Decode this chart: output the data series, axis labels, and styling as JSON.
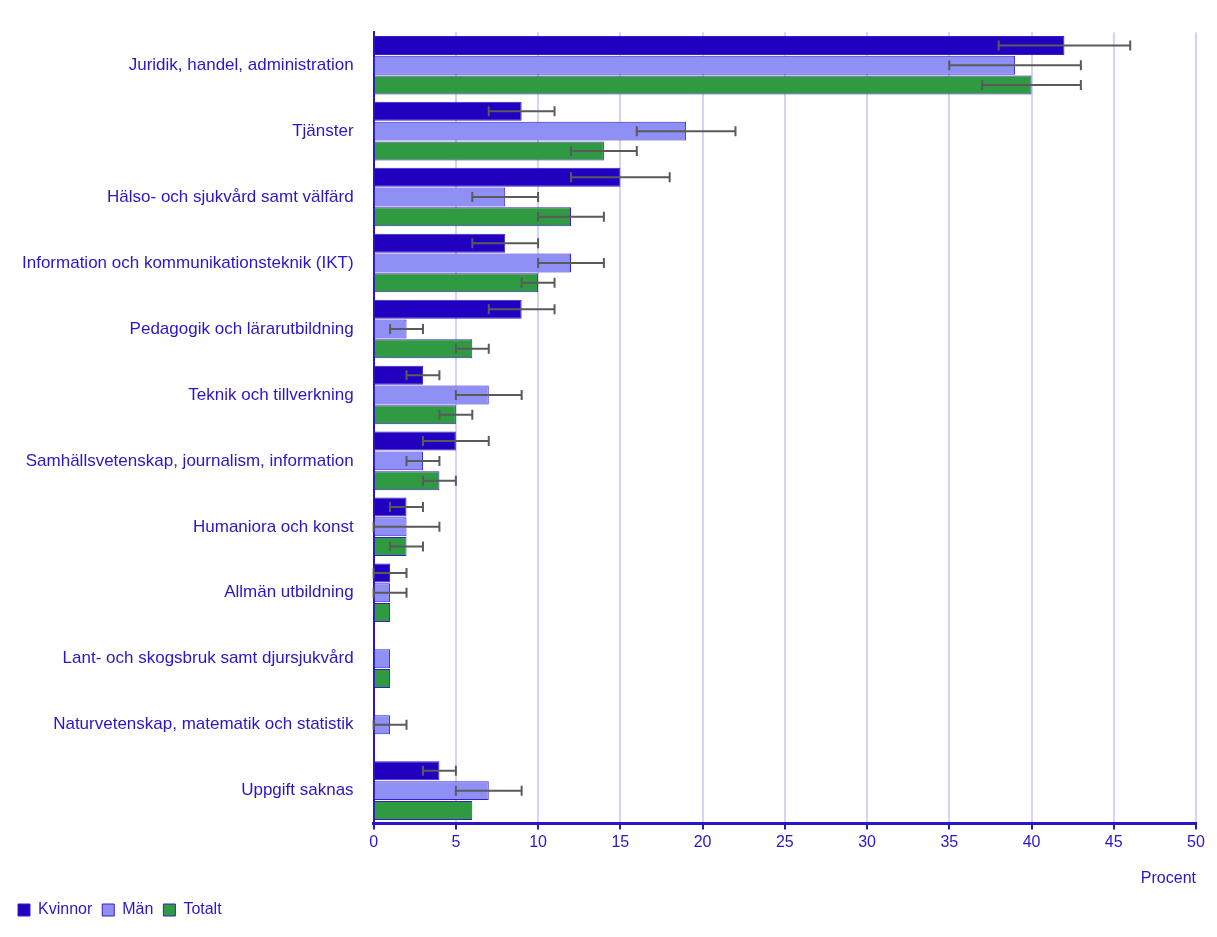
{
  "chart_data": {
    "type": "bar",
    "orientation": "horizontal",
    "xlabel": "Procent",
    "categories": [
      "Juridik, handel, administration",
      "Tjänster",
      "Hälso- och sjukvård samt välfärd",
      "Information och kommunikationsteknik (IKT)",
      "Pedagogik och lärarutbildning",
      "Teknik och tillverkning",
      "Samhällsvetenskap, journalism, information",
      "Humaniora och konst",
      "Allmän utbildning",
      "Lant- och skogsbruk samt djursjukvård",
      "Naturvetenskap, matematik och statistik",
      "Uppgift saknas"
    ],
    "series": [
      {
        "name": "Kvinnor",
        "color": "#2200c0",
        "values": [
          42,
          9,
          15,
          8,
          9,
          3,
          5,
          2,
          1,
          null,
          null,
          4
        ],
        "errors": [
          [
            38,
            46
          ],
          [
            7,
            11
          ],
          [
            12,
            18
          ],
          [
            6,
            10
          ],
          [
            7,
            11
          ],
          [
            2,
            4
          ],
          [
            3,
            7
          ],
          [
            1,
            3
          ],
          [
            0,
            2
          ],
          null,
          null,
          [
            3,
            5
          ]
        ]
      },
      {
        "name": "Män",
        "color": "#8f90f5",
        "values": [
          39,
          19,
          8,
          12,
          2,
          7,
          3,
          2,
          1,
          1,
          1,
          7
        ],
        "errors": [
          [
            35,
            43
          ],
          [
            16,
            22
          ],
          [
            6,
            10
          ],
          [
            10,
            14
          ],
          [
            1,
            3
          ],
          [
            5,
            9
          ],
          [
            2,
            4
          ],
          [
            0,
            4
          ],
          [
            0,
            2
          ],
          null,
          [
            0,
            2
          ],
          [
            5,
            9
          ]
        ]
      },
      {
        "name": "Totalt",
        "color": "#2f9a42",
        "values": [
          40,
          14,
          12,
          10,
          6,
          5,
          4,
          2,
          1,
          1,
          null,
          6
        ],
        "errors": [
          [
            37,
            43
          ],
          [
            12,
            16
          ],
          [
            10,
            14
          ],
          [
            9,
            11
          ],
          [
            5,
            7
          ],
          [
            4,
            6
          ],
          [
            3,
            5
          ],
          [
            1,
            3
          ],
          null,
          null,
          null,
          null
        ]
      }
    ],
    "xlim": [
      0,
      50
    ],
    "xticks": [
      0,
      5,
      10,
      15,
      20,
      25,
      30,
      35,
      40,
      45,
      50
    ],
    "grid": "x",
    "legend": "bottom left"
  }
}
